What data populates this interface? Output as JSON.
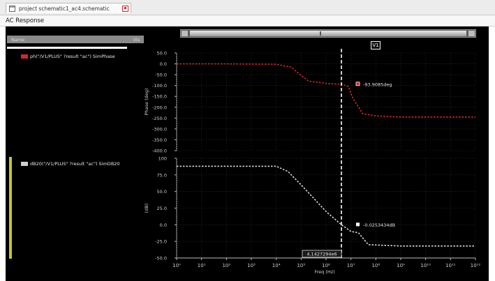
{
  "window": {
    "tab_title": "project schematic1_ac4.schematic",
    "panel_title": "AC Response"
  },
  "legend": {
    "header_left": "Name",
    "header_right": "Vis ",
    "phase_entry": "ph(\"/V1/PLUS\" ?result \"ac\")  SimPhase",
    "mag_entry": "dB20(\"/V1/PLUS\" ?result \"ac\")  SimDB20"
  },
  "cursor": {
    "label": "V1",
    "x_readout": "4.1427294e6",
    "phase_readout": "-93.9085deg",
    "mag_readout": "-0.0253434dB"
  },
  "colors": {
    "background": "#000000",
    "phase_trace": "#cc2a2a",
    "mag_trace": "#d8d8d8",
    "cursor": "#ffffff",
    "legend_strip": "#c9c626"
  },
  "chart_data": [
    {
      "type": "line",
      "title": "",
      "xlabel": "",
      "ylabel": "Phase (deg)",
      "xscale": "log",
      "xlim": [
        1.0,
        1000000000000.0
      ],
      "ylim": [
        -400,
        50
      ],
      "grid": true,
      "yticks": [
        "50.0",
        "0.0",
        "-50.0",
        "-100.0",
        "-150.0",
        "-200.0",
        "-250.0",
        "-300.0",
        "-350.0",
        "-400.0"
      ],
      "ytick_values": [
        50,
        0,
        -50,
        -100,
        -150,
        -200,
        -250,
        -300,
        -350,
        -400
      ],
      "series": [
        {
          "name": "",
          "style": "dashed",
          "x": [
            1,
            100,
            10000,
            40000,
            80000,
            200000,
            1000000,
            4142729,
            8000000,
            12000000,
            30000000,
            100000000,
            1000000000,
            1000000000000
          ],
          "y": [
            0,
            0,
            -2,
            -15,
            -45,
            -80,
            -90,
            -93.9,
            -105,
            -160,
            -230,
            -240,
            -245,
            -245
          ]
        }
      ]
    },
    {
      "type": "line",
      "title": "",
      "xlabel": "Freq (Hz)",
      "ylabel": "(dB)",
      "xscale": "log",
      "xlim": [
        1.0,
        1000000000000.0
      ],
      "ylim": [
        -50,
        100
      ],
      "grid": true,
      "xticks": [
        "10⁰",
        "10¹",
        "10²",
        "10³",
        "10⁴",
        "10⁵",
        "10⁶",
        "10⁷",
        "10⁸",
        "10⁹",
        "10¹⁰",
        "10¹¹",
        "10¹²"
      ],
      "yticks": [
        "100",
        "75.0",
        "50.0",
        "25.0",
        "0.0",
        "-25.0",
        "-50.0"
      ],
      "ytick_values": [
        100,
        75,
        50,
        25,
        0,
        -25,
        -50
      ],
      "series": [
        {
          "name": "",
          "style": "dashed",
          "x": [
            1,
            100,
            10000,
            30000,
            100000,
            1000000,
            4142729,
            10000000,
            20000000,
            50000000,
            1000000000,
            1000000000000
          ],
          "y": [
            88,
            88,
            88,
            80,
            60,
            20,
            0,
            -10,
            -12,
            -30,
            -32,
            -32
          ]
        }
      ]
    }
  ]
}
